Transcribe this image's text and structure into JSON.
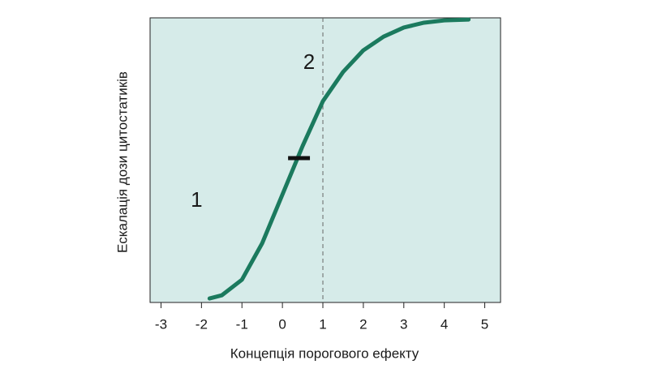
{
  "chart_data": {
    "type": "line",
    "xlabel": "Концепція порогового ефекту",
    "ylabel": "Ескалація дози цитостатиків",
    "x": [
      -1.8,
      -1.5,
      -1,
      -0.5,
      0,
      0.5,
      1,
      1.5,
      2,
      2.5,
      3,
      3.5,
      4,
      4.6
    ],
    "series": [
      {
        "color": "#1b7a5e",
        "values": [
          1.4,
          2.5,
          8,
          20.8,
          37.9,
          55,
          70.7,
          81,
          88.6,
          93.4,
          96.6,
          98.3,
          99.1,
          99.4
        ]
      }
    ],
    "xlim": [
      -3.27,
      5.39
    ],
    "ylim": [
      0,
      100
    ],
    "xticks": [
      -3,
      -2,
      -1,
      0,
      1,
      2,
      3,
      4,
      5
    ],
    "background": "#d6ebe9",
    "vline_x": 1,
    "marker": {
      "x": [
        0.14,
        0.68
      ],
      "y": 50.7
    },
    "annotations": [
      {
        "text": "1",
        "x": -2.12,
        "y": 35.6
      },
      {
        "text": "2",
        "x": 0.66,
        "y": 84
      }
    ]
  }
}
